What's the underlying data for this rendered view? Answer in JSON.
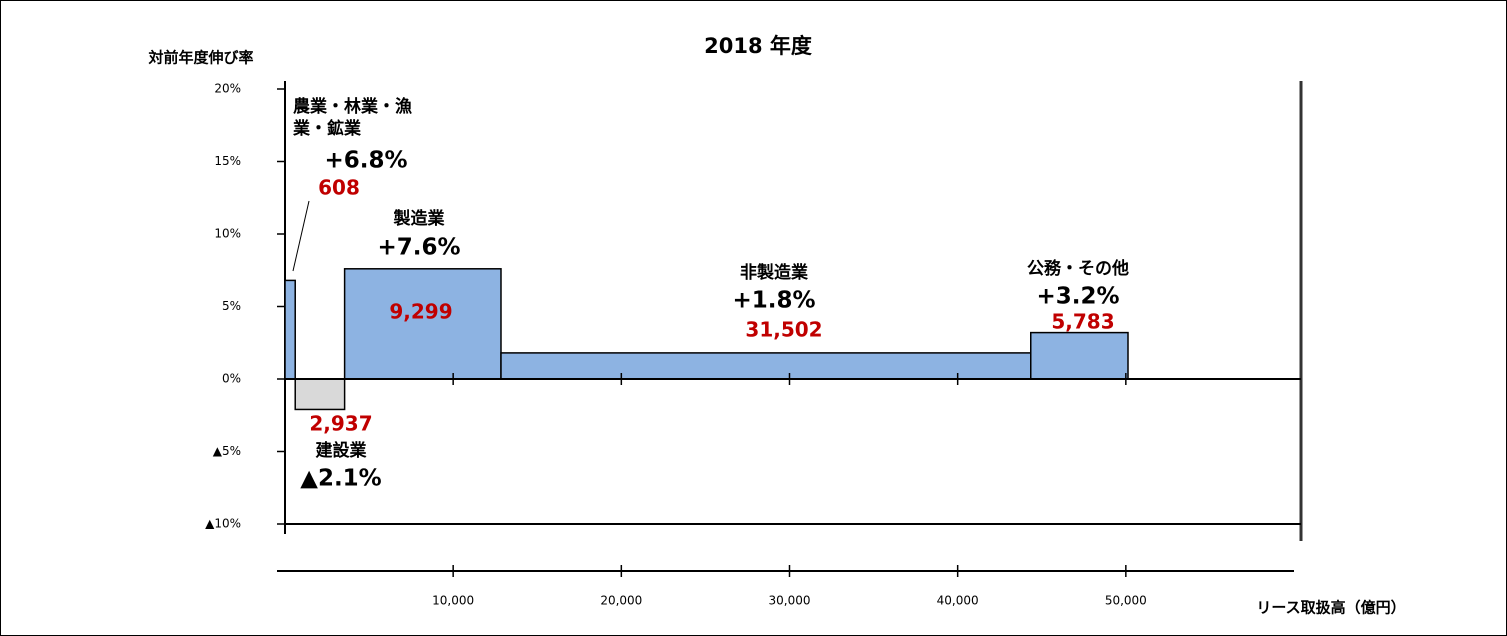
{
  "chart_data": {
    "type": "mekko",
    "title": "2018 年度",
    "y_label": "対前年度伸び率",
    "x_label": "リース取扱高（億円）",
    "categories": [
      "農業・林業・漁業・鉱業",
      "建設業",
      "製造業",
      "非製造業",
      "公務・その他"
    ],
    "values": [
      6.8,
      -2.1,
      7.6,
      1.8,
      3.2
    ],
    "value_labels": [
      "+6.8%",
      "▲2.1%",
      "+7.6%",
      "+1.8%",
      "+3.2%"
    ],
    "widths": [
      608,
      2937,
      9299,
      31502,
      5783
    ],
    "width_labels": [
      "608",
      "2,937",
      "9,299",
      "31,502",
      "5,783"
    ],
    "colors": [
      "#8db3e2",
      "#d9d9d9",
      "#8db3e2",
      "#8db3e2",
      "#8db3e2"
    ],
    "ylim": [
      -10,
      20
    ],
    "yticks": [
      {
        "value": 20,
        "label": "20%"
      },
      {
        "value": 15,
        "label": "15%"
      },
      {
        "value": 10,
        "label": "10%"
      },
      {
        "value": 5,
        "label": "5%"
      },
      {
        "value": 0,
        "label": "0%"
      },
      {
        "value": -5,
        "label": "▲5%"
      },
      {
        "value": -10,
        "label": "▲10%"
      }
    ],
    "xlim": [
      0,
      60000
    ],
    "xticks": [
      {
        "value": 10000,
        "label": "10,000"
      },
      {
        "value": 20000,
        "label": "20,000"
      },
      {
        "value": 30000,
        "label": "30,000"
      },
      {
        "value": 40000,
        "label": "40,000"
      },
      {
        "value": 50000,
        "label": "50,000"
      }
    ]
  }
}
